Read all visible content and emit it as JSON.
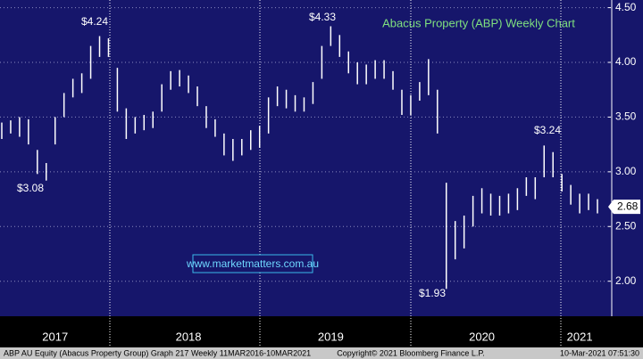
{
  "chart_data": {
    "type": "range",
    "title": "Abacus Property (ABP) Weekly Chart",
    "categories": [
      null,
      null,
      null,
      null,
      null,
      null,
      "2017",
      null,
      null,
      null,
      null,
      null,
      null,
      null,
      null,
      null,
      null,
      null,
      null,
      null,
      null,
      "2018",
      null,
      null,
      null,
      null,
      null,
      null,
      null,
      null,
      null,
      null,
      null,
      null,
      null,
      null,
      null,
      "2019",
      null,
      null,
      null,
      null,
      null,
      null,
      null,
      null,
      null,
      null,
      null,
      null,
      null,
      null,
      null,
      null,
      "2020",
      null,
      null,
      null,
      null,
      null,
      null,
      null,
      null,
      null,
      null,
      "2021",
      null,
      null
    ],
    "high": [
      3.45,
      3.47,
      3.5,
      3.48,
      3.2,
      3.08,
      3.5,
      3.72,
      3.85,
      3.9,
      4.15,
      4.24,
      4.22,
      3.95,
      3.58,
      3.5,
      3.52,
      3.55,
      3.8,
      3.92,
      3.93,
      3.88,
      3.78,
      3.6,
      3.48,
      3.35,
      3.3,
      3.3,
      3.38,
      3.42,
      3.68,
      3.78,
      3.75,
      3.7,
      3.68,
      3.82,
      4.15,
      4.33,
      4.25,
      4.1,
      4.0,
      3.98,
      4.02,
      4.02,
      3.92,
      3.75,
      3.7,
      3.82,
      4.03,
      3.75,
      2.9,
      2.55,
      2.6,
      2.78,
      2.85,
      2.8,
      2.78,
      2.8,
      2.85,
      2.95,
      2.95,
      3.24,
      3.18,
      2.98,
      2.88,
      2.8,
      2.8,
      2.75
    ],
    "low": [
      3.3,
      3.35,
      3.32,
      3.25,
      2.98,
      2.92,
      3.25,
      3.5,
      3.68,
      3.72,
      3.85,
      4.05,
      4.05,
      3.55,
      3.3,
      3.35,
      3.38,
      3.4,
      3.55,
      3.75,
      3.78,
      3.72,
      3.6,
      3.4,
      3.32,
      3.15,
      3.1,
      3.15,
      3.2,
      3.22,
      3.35,
      3.6,
      3.58,
      3.55,
      3.55,
      3.62,
      3.85,
      4.15,
      4.05,
      3.9,
      3.8,
      3.8,
      3.85,
      3.85,
      3.75,
      3.52,
      3.52,
      3.65,
      3.7,
      3.35,
      1.93,
      2.2,
      2.3,
      2.5,
      2.62,
      2.6,
      2.6,
      2.62,
      2.65,
      2.78,
      2.75,
      2.95,
      2.95,
      2.82,
      2.7,
      2.62,
      2.65,
      2.62
    ],
    "color": "#ffffff",
    "ylim": [
      1.68,
      4.57
    ],
    "yticks": [
      {
        "value": 2.0,
        "label": "2.00"
      },
      {
        "value": 2.5,
        "label": "2.50"
      },
      {
        "value": 3.0,
        "label": "3.00"
      },
      {
        "value": 3.5,
        "label": "3.50"
      },
      {
        "value": 4.0,
        "label": "4.00"
      },
      {
        "value": 4.5,
        "label": "4.50"
      }
    ],
    "grid": true,
    "last_price": {
      "value": 2.68,
      "label": "2.68"
    },
    "annotations": [
      "$4.24",
      "$4.33",
      "$3.08",
      "$1.93",
      "$3.24"
    ],
    "website": "www.marketmatters.com.au",
    "footer": [
      "ABP AU Equity (Abacus Property Group) Graph 217  Weekly 11MAR2016-10MAR2021",
      "Copyright© 2021 Bloomberg Finance L.P.",
      "10-Mar-2021 07:51:30"
    ]
  }
}
